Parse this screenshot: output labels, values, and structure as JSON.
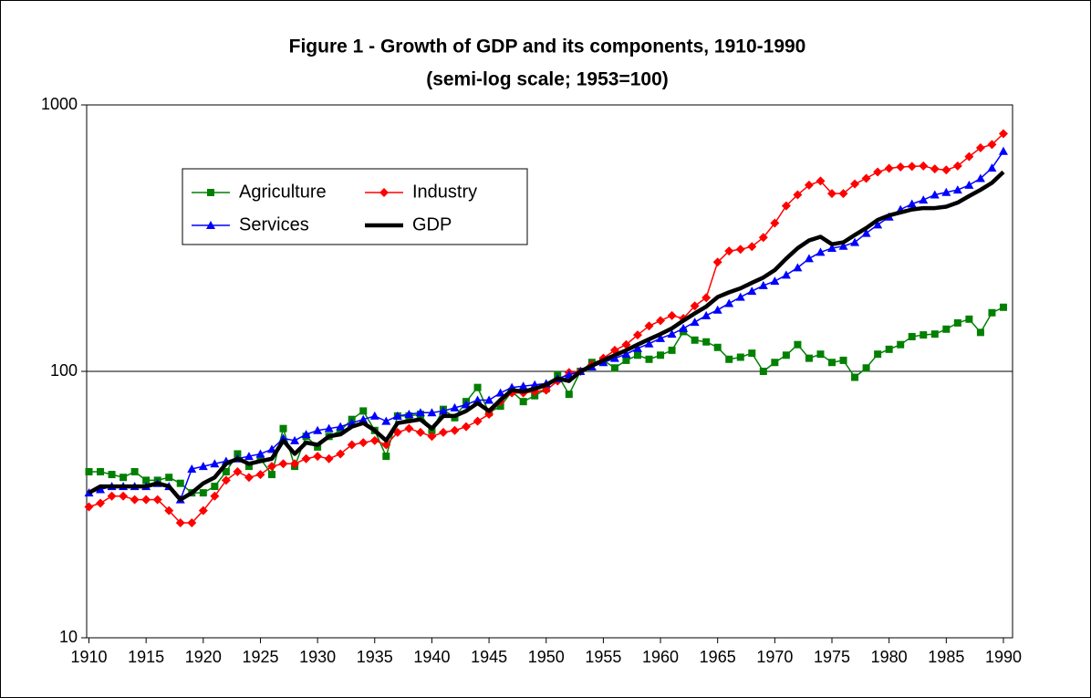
{
  "chart_data": {
    "type": "line",
    "title": "Figure 1 - Growth of GDP and its components, 1910-1990",
    "subtitle": "(semi-log scale; 1953=100)",
    "x": [
      1910,
      1911,
      1912,
      1913,
      1914,
      1915,
      1916,
      1917,
      1918,
      1919,
      1920,
      1921,
      1922,
      1923,
      1924,
      1925,
      1926,
      1927,
      1928,
      1929,
      1930,
      1931,
      1932,
      1933,
      1934,
      1935,
      1936,
      1937,
      1938,
      1939,
      1940,
      1941,
      1942,
      1943,
      1944,
      1945,
      1946,
      1947,
      1948,
      1949,
      1950,
      1951,
      1952,
      1953,
      1954,
      1955,
      1956,
      1957,
      1958,
      1959,
      1960,
      1961,
      1962,
      1963,
      1964,
      1965,
      1966,
      1967,
      1968,
      1969,
      1970,
      1971,
      1972,
      1973,
      1974,
      1975,
      1976,
      1977,
      1978,
      1979,
      1980,
      1981,
      1982,
      1983,
      1984,
      1985,
      1986,
      1987,
      1988,
      1989,
      1990
    ],
    "xlim": [
      1909.8,
      1990.8
    ],
    "xticks": [
      1910,
      1915,
      1920,
      1925,
      1930,
      1935,
      1940,
      1945,
      1950,
      1955,
      1960,
      1965,
      1970,
      1975,
      1980,
      1985,
      1990
    ],
    "ylim": [
      10,
      1000
    ],
    "yticks": [
      10,
      100,
      1000
    ],
    "log_scale": true,
    "grid": true,
    "legend": "upper left",
    "series": [
      {
        "name": "Agriculture",
        "color": "#008000",
        "marker": "square",
        "values": [
          42,
          42,
          41,
          40,
          42,
          39,
          39,
          40,
          38,
          35,
          35,
          37,
          42,
          49,
          44,
          47,
          41,
          61,
          44,
          57,
          52,
          57,
          60,
          66,
          71,
          60,
          48,
          68,
          68,
          69,
          60,
          72,
          67,
          77,
          87,
          70,
          74,
          84,
          77,
          81,
          86,
          97,
          82,
          100,
          108,
          110,
          103,
          110,
          115,
          111,
          115,
          120,
          141,
          131,
          129,
          123,
          111,
          113,
          117,
          100,
          108,
          115,
          126,
          112,
          116,
          108,
          110,
          95,
          103,
          116,
          121,
          126,
          135,
          137,
          138,
          144,
          152,
          157,
          140,
          166,
          174
        ]
      },
      {
        "name": "Industry",
        "color": "#ff0000",
        "marker": "diamond",
        "values": [
          31,
          32,
          34,
          34,
          33,
          33,
          33,
          30,
          27,
          27,
          30,
          34,
          39,
          42,
          40,
          41,
          44,
          45,
          45,
          47,
          48,
          47,
          49,
          53,
          54,
          55,
          53,
          59,
          61,
          59,
          57,
          59,
          60,
          62,
          65,
          69,
          77,
          83,
          83,
          84,
          85,
          92,
          99,
          100,
          106,
          112,
          120,
          126,
          137,
          148,
          155,
          162,
          158,
          176,
          189,
          257,
          283,
          287,
          294,
          318,
          360,
          418,
          460,
          500,
          518,
          465,
          465,
          505,
          530,
          560,
          578,
          585,
          588,
          590,
          575,
          570,
          590,
          640,
          690,
          710,
          780
        ]
      },
      {
        "name": "Services",
        "color": "#0000ff",
        "marker": "triangle",
        "values": [
          35,
          36,
          37,
          37,
          37,
          37,
          38,
          37,
          33,
          43,
          44,
          45,
          46,
          47,
          48,
          49,
          51,
          56,
          55,
          58,
          60,
          61,
          62,
          64,
          66,
          68,
          65,
          68,
          69,
          70,
          70,
          71,
          73,
          75,
          78,
          78,
          83,
          87,
          88,
          89,
          90,
          94,
          97,
          100,
          104,
          108,
          112,
          116,
          122,
          127,
          133,
          138,
          145,
          153,
          162,
          170,
          180,
          190,
          200,
          210,
          218,
          230,
          245,
          265,
          280,
          290,
          295,
          305,
          330,
          355,
          380,
          405,
          425,
          440,
          460,
          470,
          480,
          500,
          530,
          580,
          670
        ]
      },
      {
        "name": "GDP",
        "color": "#000000",
        "marker": "none",
        "values": [
          35,
          37,
          37,
          37,
          37,
          37,
          38,
          37,
          33,
          35,
          38,
          40,
          45,
          47,
          45,
          46,
          47,
          55,
          49,
          54,
          53,
          57,
          58,
          62,
          64,
          60,
          55,
          64,
          65,
          66,
          61,
          68,
          68,
          71,
          76,
          71,
          78,
          85,
          84,
          86,
          89,
          94,
          92,
          100,
          105,
          110,
          115,
          120,
          126,
          132,
          138,
          145,
          155,
          165,
          175,
          190,
          198,
          205,
          215,
          225,
          240,
          265,
          290,
          310,
          320,
          300,
          305,
          325,
          345,
          370,
          385,
          395,
          405,
          410,
          410,
          415,
          430,
          455,
          480,
          510,
          560
        ]
      }
    ]
  }
}
